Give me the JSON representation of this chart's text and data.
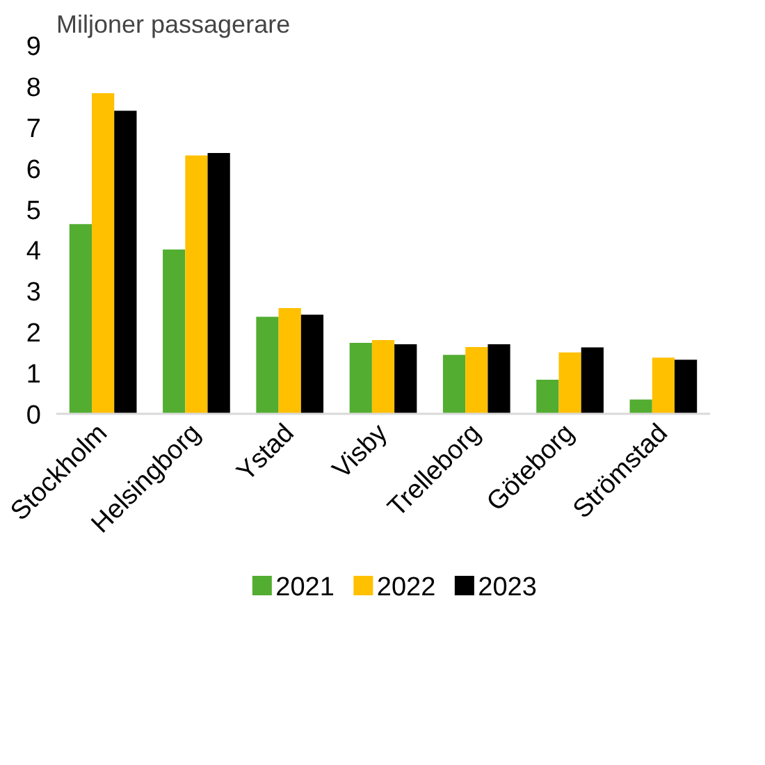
{
  "chart_data": {
    "type": "bar",
    "ylabel": "Miljoner passagerare",
    "categories": [
      "Stockholm",
      "Helsingborg",
      "Ystad",
      "Visby",
      "Trelleborg",
      "Göteborg",
      "Strömstad"
    ],
    "series": [
      {
        "name": "2021",
        "color": "#52ad31",
        "values": [
          4.63,
          4.01,
          2.37,
          1.73,
          1.44,
          0.83,
          0.35
        ]
      },
      {
        "name": "2022",
        "color": "#ffc000",
        "values": [
          7.83,
          6.31,
          2.58,
          1.8,
          1.63,
          1.5,
          1.37
        ]
      },
      {
        "name": "2023",
        "color": "#000000",
        "values": [
          7.4,
          6.37,
          2.42,
          1.7,
          1.7,
          1.62,
          1.32
        ]
      }
    ],
    "ylim": [
      0,
      9
    ],
    "yticks": [
      0,
      1,
      2,
      3,
      4,
      5,
      6,
      7,
      8,
      9
    ],
    "grid": false,
    "legend": "bottom"
  }
}
